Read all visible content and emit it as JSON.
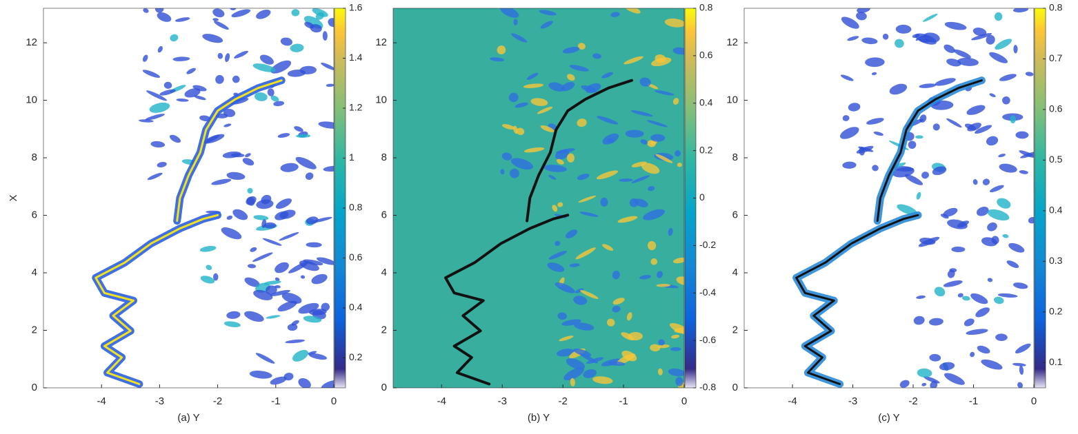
{
  "chart_data": [
    {
      "type": "contour",
      "xlabel": "(a) Y",
      "ylabel": "X",
      "colormap": "parula",
      "xlim": [
        -5,
        0
      ],
      "xticks": [
        -4,
        -3,
        -2,
        -1,
        0
      ],
      "ylim": [
        0,
        13.2
      ],
      "yticks": [
        0,
        2,
        4,
        6,
        8,
        10,
        12
      ],
      "clim": [
        0.08,
        1.6
      ],
      "cticks": [
        0.2,
        0.4,
        0.6,
        0.8,
        1,
        1.2,
        1.4,
        1.6
      ]
    },
    {
      "type": "contour",
      "xlabel": "(b) Y",
      "colormap": "parula",
      "xlim": [
        -4.8,
        0
      ],
      "xticks": [
        -4,
        -3,
        -2,
        -1,
        0
      ],
      "ylim": [
        0,
        13.2
      ],
      "yticks": [
        0,
        2,
        4,
        6,
        8,
        10,
        12
      ],
      "clim": [
        -0.8,
        0.8
      ],
      "cticks": [
        -0.8,
        -0.6,
        -0.4,
        -0.2,
        0,
        0.2,
        0.4,
        0.6,
        0.8
      ]
    },
    {
      "type": "contour",
      "xlabel": "(c) Y",
      "colormap": "parula",
      "xlim": [
        -4.8,
        0
      ],
      "xticks": [
        -4,
        -3,
        -2,
        -1,
        0
      ],
      "ylim": [
        0,
        13.2
      ],
      "yticks": [
        0,
        2,
        4,
        6,
        8,
        10,
        12
      ],
      "clim": [
        0.05,
        0.8
      ],
      "cticks": [
        0.1,
        0.2,
        0.3,
        0.4,
        0.5,
        0.6,
        0.7,
        0.8
      ]
    }
  ]
}
